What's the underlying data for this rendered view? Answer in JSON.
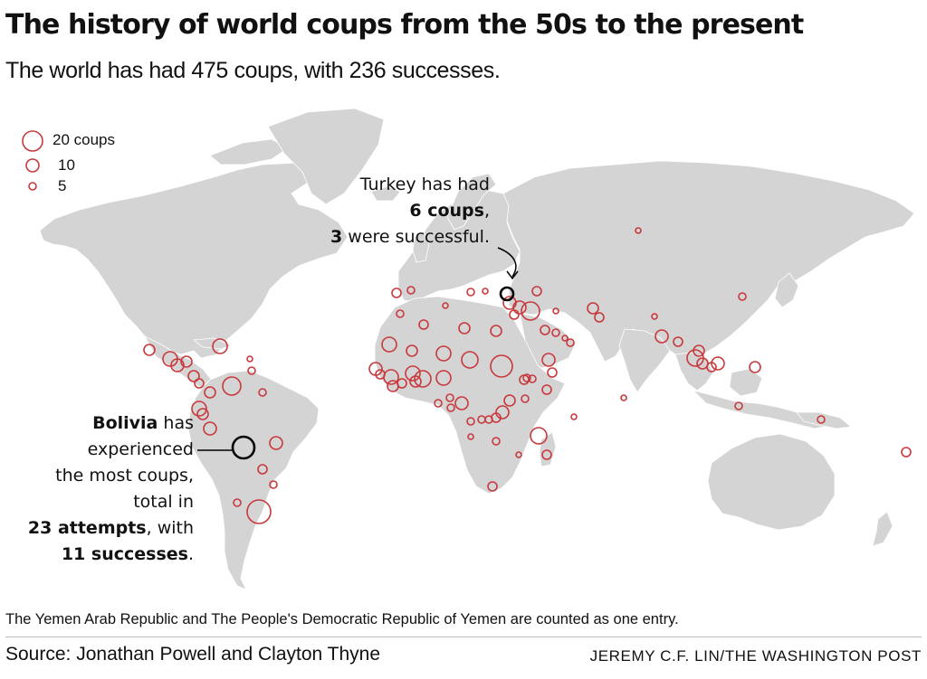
{
  "header": {
    "title": "The history of world coups from the 50s to the present",
    "subtitle": "The world has had 475 coups, with 236 successes."
  },
  "legend": {
    "items": [
      {
        "label": "20 coups",
        "coups": 20
      },
      {
        "label": "10",
        "coups": 10
      },
      {
        "label": "5",
        "coups": 5
      }
    ]
  },
  "annotations": {
    "turkey": {
      "line1": "Turkey has had",
      "line2_bold": "6 coups",
      "line2_rest": ",",
      "line3_bold": "3",
      "line3_rest": " were successful.",
      "coups": 6,
      "successes": 3
    },
    "bolivia": {
      "line1_bold": "Bolivia",
      "line1_rest": " has",
      "line2": "experienced",
      "line3": "the most coups,",
      "line4": "total in",
      "line5_bold": "23 attempts",
      "line5_rest": ", with",
      "line6_bold": "11 successes",
      "line6_rest": ".",
      "coups": 23,
      "successes": 11
    }
  },
  "footer": {
    "note": "The Yemen Arab Republic and The People's Democratic Republic of Yemen are counted as one entry.",
    "source": "Source: Jonathan Powell and Clayton Thyne",
    "credit": "JEREMY C.F. LIN/THE WASHINGTON POST"
  },
  "colors": {
    "land": "#d4d4d4",
    "border": "#ffffff",
    "circle": "#c8383c",
    "highlight": "#000000",
    "text": "#111111"
  }
}
